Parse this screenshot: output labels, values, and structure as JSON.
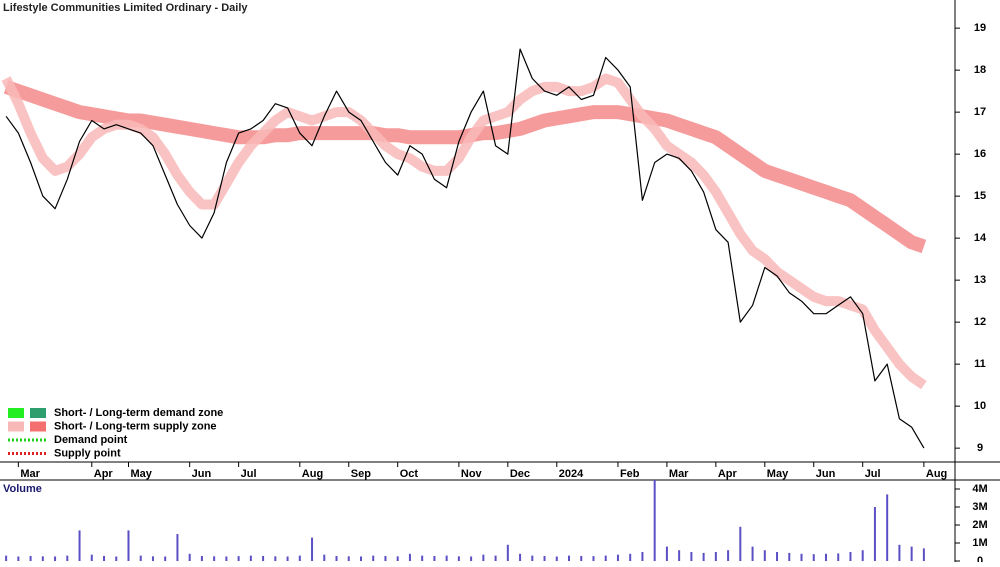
{
  "chart_data": {
    "type": "line",
    "title": "Lifestyle Communities Limited Ordinary - Daily",
    "categories": [
      null,
      "Mar",
      null,
      null,
      null,
      null,
      null,
      "Apr",
      null,
      null,
      "May",
      null,
      null,
      null,
      null,
      "Jun",
      null,
      null,
      null,
      "Jul",
      null,
      null,
      null,
      null,
      "Aug",
      null,
      null,
      null,
      "Sep",
      null,
      null,
      null,
      "Oct",
      null,
      null,
      null,
      null,
      "Nov",
      null,
      null,
      null,
      "Dec",
      null,
      null,
      null,
      "2024",
      null,
      null,
      null,
      null,
      "Feb",
      null,
      null,
      null,
      "Mar",
      null,
      null,
      null,
      "Apr",
      null,
      null,
      null,
      "May",
      null,
      null,
      null,
      "Jun",
      null,
      null,
      null,
      "Jul",
      null,
      null,
      null,
      null,
      "Aug"
    ],
    "series": [
      {
        "color": "#000000",
        "values": [
          16.9,
          16.5,
          15.8,
          15.0,
          14.7,
          15.4,
          16.3,
          16.8,
          16.6,
          16.7,
          16.6,
          16.5,
          16.2,
          15.5,
          14.8,
          14.3,
          14.0,
          14.6,
          15.8,
          16.5,
          16.6,
          16.8,
          17.2,
          17.1,
          16.5,
          16.2,
          16.9,
          17.5,
          17.0,
          16.8,
          16.3,
          15.8,
          15.5,
          16.2,
          16.0,
          15.4,
          15.2,
          16.3,
          17.0,
          17.5,
          16.2,
          16.0,
          18.5,
          17.8,
          17.5,
          17.4,
          17.6,
          17.3,
          17.4,
          18.3,
          18.0,
          17.6,
          14.9,
          15.8,
          16.0,
          15.9,
          15.6,
          15.1,
          14.2,
          13.9,
          12.0,
          12.4,
          13.3,
          13.1,
          12.7,
          12.5,
          12.2,
          12.2,
          12.4,
          12.6,
          12.2,
          10.6,
          11.0,
          9.7,
          9.5,
          9.0
        ]
      },
      {
        "color": "#f58a8a",
        "values": [
          17.6,
          17.5,
          17.4,
          17.3,
          17.2,
          17.1,
          17.0,
          16.95,
          16.9,
          16.85,
          16.8,
          16.8,
          16.75,
          16.7,
          16.65,
          16.6,
          16.55,
          16.5,
          16.45,
          16.4,
          16.4,
          16.4,
          16.45,
          16.45,
          16.5,
          16.5,
          16.5,
          16.5,
          16.5,
          16.5,
          16.5,
          16.45,
          16.45,
          16.4,
          16.4,
          16.4,
          16.4,
          16.4,
          16.45,
          16.5,
          16.5,
          16.55,
          16.6,
          16.7,
          16.8,
          16.85,
          16.9,
          16.95,
          17.0,
          17.0,
          17.0,
          16.95,
          16.9,
          16.85,
          16.8,
          16.7,
          16.6,
          16.5,
          16.4,
          16.2,
          16.0,
          15.8,
          15.6,
          15.5,
          15.4,
          15.3,
          15.2,
          15.1,
          15.0,
          14.9,
          14.7,
          14.5,
          14.3,
          14.1,
          13.9,
          13.8
        ]
      },
      {
        "color": "#f9b8b8",
        "values": [
          17.8,
          17.2,
          16.5,
          15.9,
          15.6,
          15.7,
          16.0,
          16.4,
          16.6,
          16.7,
          16.7,
          16.6,
          16.4,
          16.0,
          15.5,
          15.1,
          14.8,
          14.8,
          15.3,
          15.8,
          16.2,
          16.5,
          16.8,
          17.0,
          16.9,
          16.8,
          16.9,
          17.0,
          17.0,
          16.8,
          16.5,
          16.2,
          16.0,
          15.9,
          15.7,
          15.6,
          15.6,
          15.9,
          16.4,
          16.8,
          16.9,
          17.0,
          17.3,
          17.5,
          17.6,
          17.6,
          17.5,
          17.5,
          17.6,
          17.8,
          17.7,
          17.3,
          16.9,
          16.6,
          16.2,
          16.0,
          15.8,
          15.5,
          15.1,
          14.6,
          14.1,
          13.7,
          13.5,
          13.2,
          13.0,
          12.8,
          12.6,
          12.5,
          12.5,
          12.4,
          12.3,
          11.8,
          11.4,
          11.0,
          10.7,
          10.5
        ]
      }
    ],
    "ylim": [
      8.67,
      19.67
    ],
    "yticks": [
      9,
      10,
      11,
      12,
      13,
      14,
      15,
      16,
      17,
      18,
      19
    ],
    "volume": {
      "label": "Volume",
      "color": "#5b4fc4",
      "values": [
        300000,
        250000,
        280000,
        260000,
        250000,
        300000,
        1700000,
        350000,
        280000,
        250000,
        1700000,
        300000,
        260000,
        250000,
        1500000,
        400000,
        280000,
        260000,
        250000,
        270000,
        300000,
        280000,
        260000,
        250000,
        300000,
        1300000,
        350000,
        280000,
        260000,
        250000,
        300000,
        280000,
        260000,
        400000,
        300000,
        280000,
        300000,
        260000,
        250000,
        350000,
        300000,
        900000,
        400000,
        300000,
        280000,
        250000,
        300000,
        280000,
        270000,
        300000,
        350000,
        400000,
        500000,
        4500000,
        800000,
        600000,
        500000,
        450000,
        500000,
        600000,
        1900000,
        800000,
        600000,
        500000,
        450000,
        400000,
        380000,
        400000,
        420000,
        500000,
        600000,
        3000000,
        3700000,
        900000,
        800000,
        700000
      ],
      "ylim": [
        0,
        4500000
      ],
      "yticks": [
        {
          "value": 0,
          "label": "0"
        },
        {
          "value": 1000000,
          "label": "1M"
        },
        {
          "value": 2000000,
          "label": "2M"
        },
        {
          "value": 3000000,
          "label": "3M"
        },
        {
          "value": 4000000,
          "label": "4M"
        }
      ]
    },
    "legend": [
      {
        "text": "Short- / Long-term demand zone",
        "colors": [
          "#22ee22",
          "#2e9e6e"
        ]
      },
      {
        "text": "Short- / Long-term supply zone",
        "colors": [
          "#f9b8b8",
          "#f47070"
        ]
      },
      {
        "text": "Demand point",
        "colors": [
          "#22cc22"
        ]
      },
      {
        "text": "Supply point",
        "colors": [
          "#dd2222"
        ]
      }
    ]
  }
}
